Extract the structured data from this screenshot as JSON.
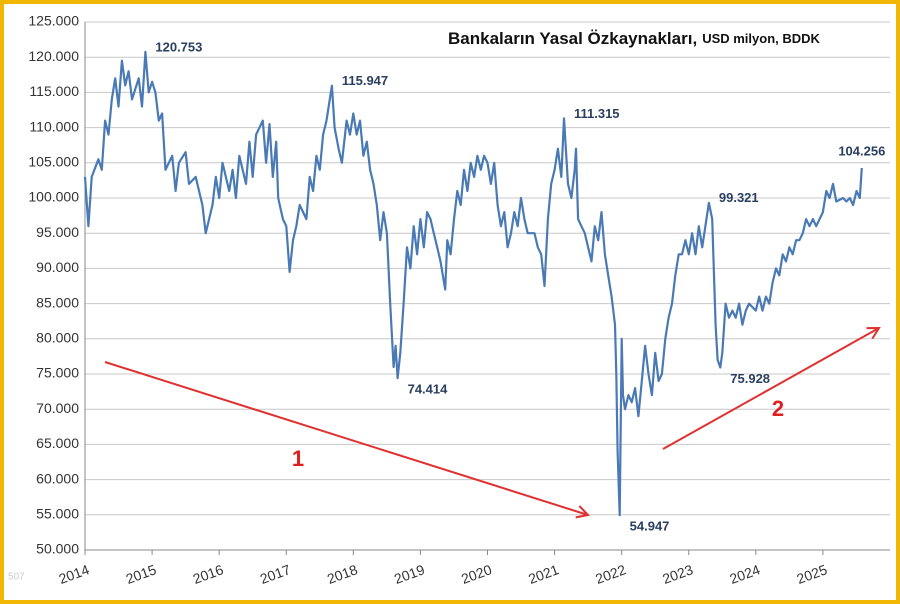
{
  "chart_data": {
    "type": "line",
    "title": "Bankaların Yasal Özkaynakları,",
    "subtitle": "USD milyon, BDDK",
    "watermark": "507",
    "annotations": [
      {
        "text": "1"
      },
      {
        "text": "2"
      }
    ],
    "xlim": [
      2014,
      2026
    ],
    "xticks": [
      2014,
      2015,
      2016,
      2017,
      2018,
      2019,
      2020,
      2021,
      2022,
      2023,
      2024,
      2025
    ],
    "ylim": [
      50000,
      125000
    ],
    "yticks": [
      {
        "value": 50000,
        "label": "50.000"
      },
      {
        "value": 55000,
        "label": "55.000"
      },
      {
        "value": 60000,
        "label": "60.000"
      },
      {
        "value": 65000,
        "label": "65.000"
      },
      {
        "value": 70000,
        "label": "70.000"
      },
      {
        "value": 75000,
        "label": "75.000"
      },
      {
        "value": 80000,
        "label": "80.000"
      },
      {
        "value": 85000,
        "label": "85.000"
      },
      {
        "value": 90000,
        "label": "90.000"
      },
      {
        "value": 95000,
        "label": "95.000"
      },
      {
        "value": 100000,
        "label": "100.000"
      },
      {
        "value": 105000,
        "label": "105.000"
      },
      {
        "value": 110000,
        "label": "110.000"
      },
      {
        "value": 115000,
        "label": "115.000"
      },
      {
        "value": 120000,
        "label": "120.000"
      },
      {
        "value": 125000,
        "label": "125.000"
      }
    ],
    "grid": true,
    "x": [
      2014.0,
      2014.05,
      2014.1,
      2014.2,
      2014.25,
      2014.3,
      2014.35,
      2014.4,
      2014.45,
      2014.5,
      2014.55,
      2014.6,
      2014.65,
      2014.7,
      2014.8,
      2014.85,
      2014.9,
      2014.95,
      2015.0,
      2015.05,
      2015.1,
      2015.15,
      2015.2,
      2015.3,
      2015.35,
      2015.4,
      2015.5,
      2015.55,
      2015.65,
      2015.75,
      2015.8,
      2015.9,
      2015.95,
      2016.0,
      2016.05,
      2016.15,
      2016.2,
      2016.25,
      2016.3,
      2016.4,
      2016.45,
      2016.5,
      2016.55,
      2016.65,
      2016.7,
      2016.75,
      2016.8,
      2016.85,
      2016.88,
      2016.95,
      2017.0,
      2017.05,
      2017.1,
      2017.15,
      2017.2,
      2017.3,
      2017.35,
      2017.4,
      2017.45,
      2017.5,
      2017.55,
      2017.6,
      2017.68,
      2017.72,
      2017.78,
      2017.83,
      2017.9,
      2017.95,
      2018.0,
      2018.05,
      2018.1,
      2018.15,
      2018.2,
      2018.25,
      2018.3,
      2018.35,
      2018.4,
      2018.45,
      2018.5,
      2018.55,
      2018.6,
      2018.63,
      2018.66,
      2018.7,
      2018.75,
      2018.8,
      2018.85,
      2018.9,
      2018.95,
      2019.0,
      2019.05,
      2019.1,
      2019.15,
      2019.2,
      2019.25,
      2019.3,
      2019.37,
      2019.4,
      2019.45,
      2019.5,
      2019.55,
      2019.6,
      2019.65,
      2019.7,
      2019.75,
      2019.8,
      2019.85,
      2019.9,
      2019.95,
      2020.0,
      2020.05,
      2020.1,
      2020.15,
      2020.2,
      2020.25,
      2020.3,
      2020.35,
      2020.4,
      2020.45,
      2020.5,
      2020.55,
      2020.6,
      2020.7,
      2020.75,
      2020.8,
      2020.85,
      2020.9,
      2020.95,
      2021.0,
      2021.05,
      2021.1,
      2021.14,
      2021.2,
      2021.25,
      2021.3,
      2021.32,
      2021.35,
      2021.4,
      2021.45,
      2021.5,
      2021.55,
      2021.6,
      2021.65,
      2021.7,
      2021.75,
      2021.8,
      2021.85,
      2021.9,
      2021.92,
      2021.94,
      2021.97,
      2022.0,
      2022.02,
      2022.05,
      2022.1,
      2022.15,
      2022.2,
      2022.25,
      2022.3,
      2022.35,
      2022.4,
      2022.45,
      2022.5,
      2022.55,
      2022.6,
      2022.65,
      2022.7,
      2022.75,
      2022.8,
      2022.85,
      2022.9,
      2022.95,
      2023.0,
      2023.05,
      2023.1,
      2023.15,
      2023.2,
      2023.3,
      2023.35,
      2023.4,
      2023.43,
      2023.47,
      2023.5,
      2023.55,
      2023.6,
      2023.65,
      2023.7,
      2023.75,
      2023.8,
      2023.85,
      2023.9,
      2024.0,
      2024.05,
      2024.1,
      2024.15,
      2024.2,
      2024.25,
      2024.3,
      2024.35,
      2024.4,
      2024.45,
      2024.5,
      2024.55,
      2024.6,
      2024.65,
      2024.7,
      2024.75,
      2024.8,
      2024.85,
      2024.9,
      2025.0,
      2025.05,
      2025.1,
      2025.15,
      2025.2,
      2025.3,
      2025.35,
      2025.4,
      2025.45,
      2025.5,
      2025.55,
      2025.58
    ],
    "series": [
      {
        "color": "#4a7ab5",
        "values": [
          103000,
          96000,
          103000,
          105500,
          104000,
          111000,
          109000,
          114000,
          117000,
          113000,
          119500,
          116000,
          118000,
          114000,
          117000,
          113000,
          120753,
          115000,
          116500,
          115000,
          111000,
          112000,
          104000,
          106000,
          101000,
          105000,
          106500,
          102000,
          103000,
          99000,
          95000,
          99000,
          103000,
          100000,
          105000,
          101000,
          104000,
          100000,
          106000,
          102000,
          108000,
          103000,
          109000,
          111000,
          105000,
          110500,
          103000,
          108000,
          100000,
          97000,
          96000,
          89500,
          94000,
          96000,
          99000,
          97000,
          103000,
          101000,
          106000,
          104000,
          109000,
          111000,
          115947,
          110000,
          107000,
          105000,
          111000,
          109000,
          112000,
          109000,
          111000,
          106000,
          108000,
          104000,
          102000,
          99000,
          94000,
          98000,
          95000,
          85000,
          76000,
          79000,
          74414,
          78000,
          85000,
          93000,
          90000,
          96000,
          92000,
          97000,
          93000,
          98000,
          97000,
          95000,
          93000,
          91000,
          87000,
          94000,
          92000,
          97000,
          101000,
          99000,
          104000,
          101000,
          105000,
          103000,
          106000,
          104000,
          106000,
          105000,
          102000,
          105000,
          99000,
          96000,
          98000,
          93000,
          95000,
          98000,
          96000,
          100000,
          97000,
          95000,
          95000,
          93000,
          92000,
          87500,
          97000,
          102000,
          104000,
          107000,
          103000,
          111315,
          102000,
          100000,
          104000,
          107000,
          97000,
          96000,
          95000,
          93000,
          91000,
          96000,
          94000,
          98000,
          92000,
          89000,
          86000,
          82000,
          75000,
          64000,
          54947,
          80000,
          72000,
          70000,
          72000,
          71000,
          73000,
          69000,
          74000,
          79000,
          75000,
          72000,
          78000,
          74000,
          75000,
          80000,
          83000,
          85000,
          89000,
          92000,
          92000,
          94000,
          92000,
          95000,
          92000,
          96000,
          93000,
          99321,
          97000,
          82000,
          77000,
          75928,
          78000,
          85000,
          83000,
          84000,
          83000,
          85000,
          82000,
          84000,
          85000,
          84000,
          86000,
          84000,
          86000,
          85000,
          88000,
          90000,
          89000,
          92000,
          91000,
          93000,
          92000,
          94000,
          94000,
          95000,
          97000,
          96000,
          97000,
          96000,
          98000,
          101000,
          100000,
          102000,
          99500,
          100000,
          99500,
          100000,
          99000,
          101000,
          100000,
          104256
        ],
        "value_labels": [
          null,
          null,
          null,
          null,
          null,
          null,
          null,
          null,
          null,
          null,
          null,
          null,
          null,
          null,
          null,
          null,
          "120.753",
          null,
          null,
          null,
          null,
          null,
          null,
          null,
          null,
          null,
          null,
          null,
          null,
          null,
          null,
          null,
          null,
          null,
          null,
          null,
          null,
          null,
          null,
          null,
          null,
          null,
          null,
          null,
          null,
          null,
          null,
          null,
          null,
          null,
          null,
          null,
          null,
          null,
          null,
          null,
          null,
          null,
          null,
          null,
          null,
          null,
          "115.947",
          null,
          null,
          null,
          null,
          null,
          null,
          null,
          null,
          null,
          null,
          null,
          null,
          null,
          null,
          null,
          null,
          null,
          null,
          null,
          "74.414",
          null,
          null,
          null,
          null,
          null,
          null,
          null,
          null,
          null,
          null,
          null,
          null,
          null,
          null,
          null,
          null,
          null,
          null,
          null,
          null,
          null,
          null,
          null,
          null,
          null,
          null,
          null,
          null,
          null,
          null,
          null,
          null,
          null,
          null,
          null,
          null,
          null,
          null,
          null,
          null,
          null,
          null,
          null,
          null,
          null,
          null,
          null,
          null,
          "111.315",
          null,
          null,
          null,
          null,
          null,
          null,
          null,
          null,
          null,
          null,
          null,
          null,
          null,
          null,
          null,
          null,
          null,
          null,
          "54.947",
          null,
          null,
          null,
          null,
          null,
          null,
          null,
          null,
          null,
          null,
          null,
          null,
          null,
          null,
          null,
          null,
          null,
          null,
          null,
          null,
          null,
          null,
          null,
          null,
          null,
          null,
          "99.321",
          null,
          null,
          null,
          "75.928",
          null,
          null,
          null,
          null,
          null,
          null,
          null,
          null,
          null,
          null,
          null,
          null,
          null,
          null,
          null,
          null,
          null,
          null,
          null,
          null,
          null,
          null,
          null,
          null,
          null,
          null,
          null,
          null,
          null,
          null,
          null,
          null,
          null,
          null,
          null,
          null,
          null,
          null,
          null,
          "104.256"
        ]
      }
    ]
  }
}
